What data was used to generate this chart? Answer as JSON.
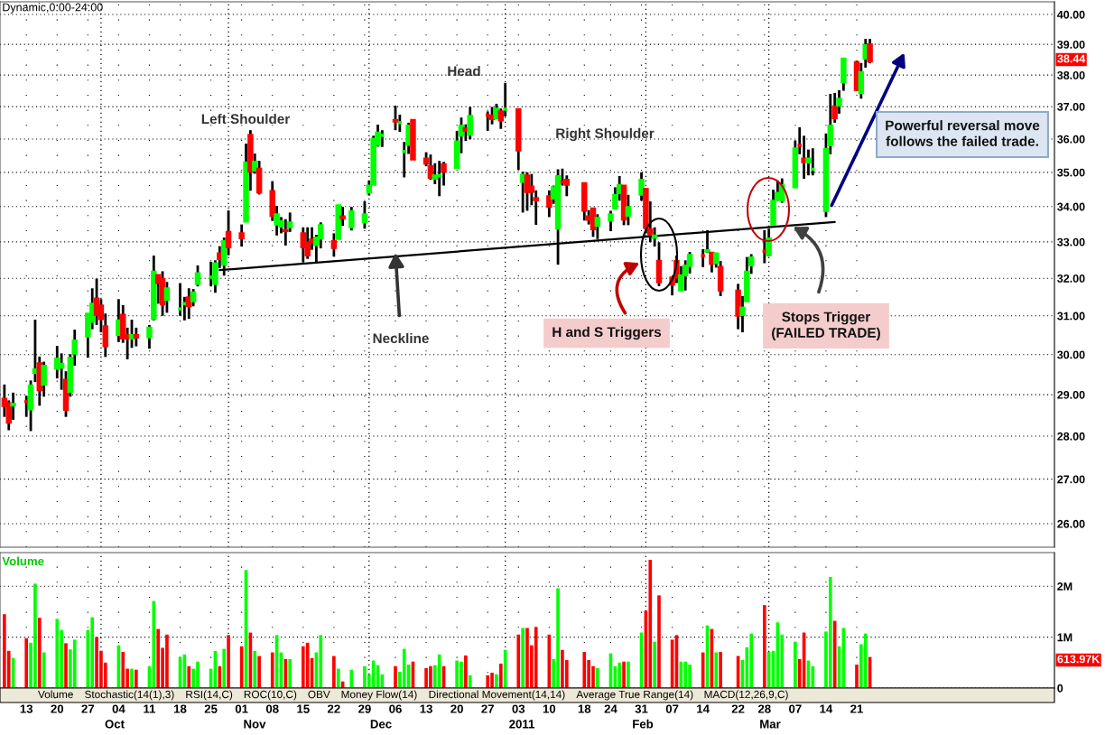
{
  "chart_data": [
    {
      "type": "candlestick",
      "title": "Dynamic,0:00-24:00",
      "x": [
        "2010-09-08",
        "2010-09-09",
        "2010-09-10",
        "2010-09-13",
        "2010-09-14",
        "2010-09-15",
        "2010-09-16",
        "2010-09-17",
        "2010-09-20",
        "2010-09-21",
        "2010-09-22",
        "2010-09-23",
        "2010-09-24",
        "2010-09-27",
        "2010-09-28",
        "2010-09-29",
        "2010-09-30",
        "2010-10-01",
        "2010-10-04",
        "2010-10-05",
        "2010-10-06",
        "2010-10-07",
        "2010-10-08",
        "2010-10-11",
        "2010-10-12",
        "2010-10-13",
        "2010-10-14",
        "2010-10-15",
        "2010-10-18",
        "2010-10-19",
        "2010-10-20",
        "2010-10-21",
        "2010-10-22",
        "2010-10-25",
        "2010-10-26",
        "2010-10-27",
        "2010-10-28",
        "2010-10-29",
        "2010-11-01",
        "2010-11-02",
        "2010-11-03",
        "2010-11-04",
        "2010-11-05",
        "2010-11-08",
        "2010-11-09",
        "2010-11-10",
        "2010-11-11",
        "2010-11-12",
        "2010-11-15",
        "2010-11-16",
        "2010-11-17",
        "2010-11-18",
        "2010-11-19",
        "2010-11-22",
        "2010-11-23",
        "2010-11-24",
        "2010-11-26",
        "2010-11-29",
        "2010-11-30",
        "2010-12-01",
        "2010-12-02",
        "2010-12-03",
        "2010-12-06",
        "2010-12-07",
        "2010-12-08",
        "2010-12-09",
        "2010-12-10",
        "2010-12-13",
        "2010-12-14",
        "2010-12-15",
        "2010-12-16",
        "2010-12-17",
        "2010-12-20",
        "2010-12-21",
        "2010-12-22",
        "2010-12-23",
        "2010-12-27",
        "2010-12-28",
        "2010-12-29",
        "2010-12-30",
        "2010-12-31",
        "2011-01-03",
        "2011-01-04",
        "2011-01-05",
        "2011-01-06",
        "2011-01-07",
        "2011-01-10",
        "2011-01-11",
        "2011-01-12",
        "2011-01-13",
        "2011-01-14",
        "2011-01-18",
        "2011-01-19",
        "2011-01-20",
        "2011-01-21",
        "2011-01-24",
        "2011-01-25",
        "2011-01-26",
        "2011-01-27",
        "2011-01-28",
        "2011-01-31",
        "2011-02-01",
        "2011-02-02",
        "2011-02-03",
        "2011-02-04",
        "2011-02-07",
        "2011-02-08",
        "2011-02-09",
        "2011-02-10",
        "2011-02-11",
        "2011-02-14",
        "2011-02-15",
        "2011-02-16",
        "2011-02-17",
        "2011-02-18",
        "2011-02-22",
        "2011-02-23",
        "2011-02-24",
        "2011-02-25",
        "2011-02-28",
        "2011-03-01",
        "2011-03-02",
        "2011-03-03",
        "2011-03-04",
        "2011-03-07",
        "2011-03-08",
        "2011-03-09",
        "2011-03-10",
        "2011-03-11",
        "2011-03-14",
        "2011-03-15",
        "2011-03-16",
        "2011-03-17",
        "2011-03-18",
        "2011-03-21",
        "2011-03-22",
        "2011-03-23",
        "2011-03-24"
      ],
      "ohlc": [
        [
          28.9,
          29.25,
          28.46,
          28.72
        ],
        [
          28.79,
          28.86,
          28.14,
          28.32
        ],
        [
          28.73,
          29.05,
          28.39,
          28.78
        ],
        [
          28.83,
          28.97,
          28.46,
          28.83
        ],
        [
          28.64,
          29.35,
          28.12,
          29.23
        ],
        [
          29.54,
          30.9,
          29.31,
          29.63
        ],
        [
          29.78,
          29.95,
          28.73,
          29.11
        ],
        [
          29.25,
          29.82,
          28.95,
          29.72
        ],
        [
          29.64,
          30.22,
          29.4,
          29.9
        ],
        [
          29.67,
          30.03,
          29.12,
          29.77
        ],
        [
          29.37,
          29.58,
          28.46,
          28.63
        ],
        [
          29.07,
          30.01,
          28.95,
          29.92
        ],
        [
          30.02,
          30.64,
          29.72,
          30.36
        ],
        [
          30.46,
          31.06,
          29.92,
          31.06
        ],
        [
          30.84,
          31.73,
          30.65,
          31.32
        ],
        [
          31.46,
          31.99,
          30.76,
          31.02
        ],
        [
          31.27,
          31.44,
          30.57,
          30.91
        ],
        [
          30.73,
          31.06,
          29.94,
          30.21
        ],
        [
          30.5,
          31.44,
          30.32,
          30.88
        ],
        [
          31.03,
          31.28,
          30.3,
          30.41
        ],
        [
          30.5,
          30.69,
          29.88,
          30.41
        ],
        [
          30.41,
          30.9,
          30.17,
          30.5
        ],
        [
          30.5,
          30.69,
          30.21,
          30.44
        ],
        [
          30.44,
          30.76,
          30.15,
          30.69
        ],
        [
          30.92,
          32.62,
          30.88,
          32.18
        ],
        [
          32.09,
          32.09,
          31.32,
          31.87
        ],
        [
          31.98,
          32.19,
          31.0,
          31.3
        ],
        [
          31.42,
          31.9,
          31.08,
          31.73
        ],
        [
          31.18,
          31.87,
          31.0,
          31.18
        ],
        [
          31.32,
          31.5,
          30.88,
          31.32
        ],
        [
          31.49,
          31.73,
          30.92,
          31.25
        ],
        [
          31.38,
          31.71,
          31.25,
          31.62
        ],
        [
          31.85,
          32.35,
          31.78,
          32.14
        ],
        [
          32.03,
          32.45,
          31.78,
          32.03
        ],
        [
          31.85,
          32.49,
          31.61,
          32.41
        ],
        [
          32.68,
          32.88,
          32.28,
          32.52
        ],
        [
          32.37,
          33.12,
          32.07,
          33.02
        ],
        [
          33.28,
          33.89,
          32.63,
          32.85
        ],
        [
          33.24,
          33.49,
          32.87,
          33.1
        ],
        [
          33.57,
          35.86,
          33.57,
          35.29
        ],
        [
          36.13,
          36.27,
          34.46,
          35.02
        ],
        [
          35.05,
          35.56,
          34.96,
          35.32
        ],
        [
          35.11,
          35.34,
          34.35,
          34.41
        ],
        [
          34.45,
          34.74,
          33.59,
          33.73
        ],
        [
          33.49,
          34.02,
          33.18,
          33.78
        ],
        [
          33.43,
          33.7,
          33.24,
          33.59
        ],
        [
          33.34,
          33.64,
          32.9,
          33.3
        ],
        [
          33.41,
          33.83,
          33.28,
          33.55
        ],
        [
          33.24,
          33.41,
          32.43,
          32.85
        ],
        [
          32.99,
          33.41,
          32.53,
          32.62
        ],
        [
          33.07,
          33.41,
          32.78,
          32.99
        ],
        [
          32.91,
          33.2,
          32.43,
          33.12
        ],
        [
          33.1,
          33.55,
          32.82,
          33.47
        ],
        [
          33.02,
          33.24,
          32.59,
          32.83
        ],
        [
          33.08,
          34.04,
          33.07,
          34.04
        ],
        [
          33.72,
          33.99,
          33.45,
          33.66
        ],
        [
          33.41,
          33.99,
          33.32,
          33.87
        ],
        [
          33.55,
          34.15,
          33.37,
          33.78
        ],
        [
          34.41,
          34.76,
          34.32,
          34.61
        ],
        [
          34.63,
          36.1,
          34.63,
          36.01
        ],
        [
          35.82,
          36.44,
          35.77,
          36.2
        ],
        [
          36.11,
          36.27,
          35.76,
          36.11
        ],
        [
          36.59,
          37.03,
          36.27,
          36.53
        ],
        [
          36.5,
          36.75,
          36.22,
          36.5
        ],
        [
          35.62,
          35.91,
          34.85,
          35.62
        ],
        [
          35.82,
          36.5,
          35.55,
          36.41
        ],
        [
          36.59,
          36.59,
          35.38,
          35.38
        ],
        [
          35.41,
          35.6,
          35.18,
          35.26
        ],
        [
          35.18,
          35.53,
          34.78,
          34.84
        ],
        [
          34.81,
          35.27,
          34.65,
          34.91
        ],
        [
          34.9,
          35.34,
          34.3,
          34.9
        ],
        [
          35.24,
          35.31,
          34.61,
          35.02
        ],
        [
          35.13,
          36.25,
          35.13,
          35.93
        ],
        [
          36.1,
          36.66,
          35.57,
          36.41
        ],
        [
          36.33,
          36.45,
          35.94,
          36.25
        ],
        [
          36.13,
          36.99,
          35.99,
          36.71
        ],
        [
          36.73,
          36.85,
          36.25,
          36.73
        ],
        [
          36.73,
          36.99,
          36.45,
          36.61
        ],
        [
          36.64,
          37.09,
          36.62,
          36.94
        ],
        [
          36.85,
          36.94,
          36.31,
          36.57
        ],
        [
          36.92,
          37.75,
          36.69,
          36.92
        ],
        [
          36.92,
          36.92,
          35.07,
          35.65
        ],
        [
          34.72,
          35.02,
          33.83,
          34.93
        ],
        [
          34.91,
          35.0,
          33.88,
          34.42
        ],
        [
          34.58,
          34.95,
          34.04,
          34.43
        ],
        [
          34.25,
          34.47,
          33.48,
          34.18
        ],
        [
          34.3,
          34.47,
          33.7,
          33.99
        ],
        [
          34.23,
          34.61,
          34.08,
          34.56
        ],
        [
          33.37,
          35.09,
          32.37,
          34.89
        ],
        [
          34.72,
          35.11,
          34.61,
          34.72
        ],
        [
          34.78,
          34.91,
          34.3,
          34.63
        ],
        [
          34.68,
          34.7,
          33.6,
          33.88
        ],
        [
          33.72,
          33.9,
          33.49,
          33.62
        ],
        [
          33.95,
          33.95,
          33.14,
          33.35
        ],
        [
          33.45,
          33.78,
          33.08,
          33.68
        ],
        [
          33.6,
          33.88,
          33.3,
          33.78
        ],
        [
          33.95,
          34.56,
          33.93,
          34.34
        ],
        [
          34.39,
          34.89,
          34.17,
          34.63
        ],
        [
          34.61,
          34.61,
          33.47,
          33.63
        ],
        [
          33.74,
          34.34,
          33.47,
          33.99
        ],
        [
          34.34,
          35.0,
          34.17,
          34.78
        ],
        [
          34.52,
          34.52,
          33.24,
          33.39
        ],
        [
          33.35,
          34.15,
          32.99,
          33.2
        ],
        [
          33.12,
          33.41,
          32.87,
          33.18
        ],
        [
          32.48,
          32.99,
          31.79,
          31.89
        ],
        [
          32.02,
          32.02,
          31.54,
          31.83
        ],
        [
          32.47,
          32.62,
          31.87,
          32.02
        ],
        [
          31.67,
          32.33,
          31.67,
          32.08
        ],
        [
          32.08,
          32.49,
          31.67,
          32.35
        ],
        [
          32.33,
          32.72,
          32.13,
          32.64
        ],
        [
          32.62,
          32.8,
          32.3,
          32.62
        ],
        [
          32.73,
          33.33,
          32.7,
          32.77
        ],
        [
          32.7,
          32.7,
          32.16,
          32.39
        ],
        [
          32.41,
          32.68,
          32.29,
          32.68
        ],
        [
          32.31,
          32.47,
          31.52,
          31.67
        ],
        [
          31.67,
          31.85,
          30.65,
          31.0
        ],
        [
          31.02,
          31.52,
          30.57,
          31.22
        ],
        [
          31.38,
          32.58,
          31.38,
          32.18
        ],
        [
          32.35,
          32.66,
          32.12,
          32.57
        ],
        [
          32.74,
          33.33,
          32.41,
          32.74
        ],
        [
          32.63,
          33.37,
          32.6,
          33.1
        ],
        [
          33.49,
          34.49,
          33.48,
          34.17
        ],
        [
          34.19,
          34.74,
          34.17,
          34.4
        ],
        [
          34.17,
          34.82,
          34.11,
          34.63
        ],
        [
          34.56,
          35.95,
          34.54,
          35.72
        ],
        [
          35.81,
          36.36,
          35.54,
          35.81
        ],
        [
          35.41,
          36.1,
          34.81,
          35.29
        ],
        [
          35.29,
          35.68,
          34.91,
          35.41
        ],
        [
          35.09,
          35.72,
          34.91,
          35.09
        ],
        [
          33.87,
          36.17,
          33.7,
          35.7
        ],
        [
          35.81,
          37.4,
          35.54,
          36.41
        ],
        [
          37.01,
          37.43,
          36.5,
          36.64
        ],
        [
          37.03,
          37.52,
          36.78,
          37.25
        ],
        [
          37.77,
          38.54,
          37.5,
          38.54
        ],
        [
          38.42,
          38.47,
          37.5,
          37.52
        ],
        [
          37.42,
          38.39,
          37.25,
          38.1
        ],
        [
          38.53,
          39.18,
          38.24,
          38.97
        ],
        [
          39.0,
          39.18,
          38.38,
          38.44
        ]
      ],
      "colors": [
        "#ff0000",
        "#ff0000",
        "#00ff00",
        "#ff0000",
        "#00ff00",
        "#00ff00",
        "#ff0000",
        "#00ff00",
        "#00ff00",
        "#00ff00",
        "#ff0000",
        "#00ff00",
        "#00ff00",
        "#00ff00",
        "#00ff00",
        "#ff0000",
        "#ff0000",
        "#ff0000",
        "#00ff00",
        "#ff0000",
        "#ff0000",
        "#00ff00",
        "#ff0000",
        "#00ff00",
        "#00ff00",
        "#ff0000",
        "#ff0000",
        "#00ff00",
        "#00ff00",
        "#00ff00",
        "#ff0000",
        "#00ff00",
        "#00ff00",
        "#00ff00",
        "#00ff00",
        "#ff0000",
        "#00ff00",
        "#ff0000",
        "#ff0000",
        "#00ff00",
        "#ff0000",
        "#00ff00",
        "#ff0000",
        "#ff0000",
        "#00ff00",
        "#00ff00",
        "#ff0000",
        "#00ff00",
        "#ff0000",
        "#ff0000",
        "#ff0000",
        "#00ff00",
        "#00ff00",
        "#ff0000",
        "#00ff00",
        "#ff0000",
        "#00ff00",
        "#00ff00",
        "#00ff00",
        "#00ff00",
        "#00ff00",
        "#00ff00",
        "#ff0000",
        "#00ff00",
        "#00ff00",
        "#00ff00",
        "#ff0000",
        "#ff0000",
        "#ff0000",
        "#00ff00",
        "#00ff00",
        "#ff0000",
        "#00ff00",
        "#00ff00",
        "#ff0000",
        "#00ff00",
        "#ff0000",
        "#ff0000",
        "#00ff00",
        "#ff0000",
        "#00ff00",
        "#ff0000",
        "#00ff00",
        "#ff0000",
        "#ff0000",
        "#ff0000",
        "#ff0000",
        "#00ff00",
        "#00ff00",
        "#ff0000",
        "#ff0000",
        "#ff0000",
        "#ff0000",
        "#ff0000",
        "#00ff00",
        "#00ff00",
        "#00ff00",
        "#00ff00",
        "#ff0000",
        "#00ff00",
        "#00ff00",
        "#ff0000",
        "#ff0000",
        "#00ff00",
        "#ff0000",
        "#ff0000",
        "#ff0000",
        "#00ff00",
        "#00ff00",
        "#00ff00",
        "#ff0000",
        "#00ff00",
        "#ff0000",
        "#00ff00",
        "#ff0000",
        "#ff0000",
        "#00ff00",
        "#00ff00",
        "#00ff00",
        "#ff0000",
        "#00ff00",
        "#00ff00",
        "#00ff00",
        "#00ff00",
        "#00ff00",
        "#ff0000",
        "#ff0000",
        "#00ff00",
        "#00ff00",
        "#00ff00",
        "#00ff00",
        "#ff0000",
        "#00ff00",
        "#00ff00",
        "#ff0000",
        "#00ff00",
        "#00ff00",
        "#ff0000"
      ],
      "series": [
        {
          "type": "line",
          "x": [
            "2010-10-27",
            "2011-03-16"
          ],
          "values": [
            32.22,
            33.56
          ],
          "color": "#000000"
        }
      ],
      "xlim": [
        "2010-09-07",
        "2011-05-05"
      ],
      "xticks": [
        {
          "value": "2010-09-13",
          "label": null
        },
        {
          "value": "2010-09-20",
          "label": null
        },
        {
          "value": "2010-09-27",
          "label": null
        },
        {
          "value": "2010-10-04",
          "label": null
        },
        {
          "value": "2010-10-11",
          "label": null
        },
        {
          "value": "2010-10-18",
          "label": null
        },
        {
          "value": "2010-10-25",
          "label": null
        },
        {
          "value": "2010-11-01",
          "label": null
        },
        {
          "value": "2010-11-08",
          "label": null
        },
        {
          "value": "2010-11-15",
          "label": null
        },
        {
          "value": "2010-11-22",
          "label": null
        },
        {
          "value": "2010-11-29",
          "label": null
        },
        {
          "value": "2010-12-06",
          "label": null
        },
        {
          "value": "2010-12-13",
          "label": null
        },
        {
          "value": "2010-12-20",
          "label": null
        },
        {
          "value": "2010-12-27",
          "label": null
        },
        {
          "value": "2011-01-03",
          "label": null
        },
        {
          "value": "2011-01-10",
          "label": null
        },
        {
          "value": "2011-01-18",
          "label": null
        },
        {
          "value": "2011-01-24",
          "label": null
        },
        {
          "value": "2011-01-31",
          "label": null
        },
        {
          "value": "2011-02-07",
          "label": null
        },
        {
          "value": "2011-02-14",
          "label": null
        },
        {
          "value": "2011-02-22",
          "label": null
        },
        {
          "value": "2011-02-28",
          "label": null
        },
        {
          "value": "2011-03-07",
          "label": null
        },
        {
          "value": "2011-03-14",
          "label": null
        },
        {
          "value": "2011-03-21",
          "label": null
        }
      ],
      "ylim": [
        25.49,
        40.43
      ],
      "yticks": [
        {
          "value": 26,
          "label": "26.00"
        },
        {
          "value": 27,
          "label": "27.00"
        },
        {
          "value": 28,
          "label": "28.00"
        },
        {
          "value": 29,
          "label": "29.00"
        },
        {
          "value": 30,
          "label": "30.00"
        },
        {
          "value": 31,
          "label": "31.00"
        },
        {
          "value": 32,
          "label": "32.00"
        },
        {
          "value": 33,
          "label": "33.00"
        },
        {
          "value": 34,
          "label": "34.00"
        },
        {
          "value": 35,
          "label": "35.00"
        },
        {
          "value": 36,
          "label": "36.00"
        },
        {
          "value": 37,
          "label": "37.00"
        },
        {
          "value": 38,
          "label": "38.00"
        },
        {
          "value": 39,
          "label": "39.00"
        },
        {
          "value": 40,
          "label": "40.00"
        }
      ],
      "log": true,
      "grid": true,
      "tick_labels": "y",
      "ref_lines": [
        {
          "axis": "x",
          "value": "2010-09-30",
          "color": "#000000",
          "line_style": "dotted"
        },
        {
          "axis": "x",
          "value": "2010-10-29",
          "color": "#000000",
          "line_style": "dotted"
        },
        {
          "axis": "x",
          "value": "2010-11-30",
          "color": "#000000",
          "line_style": "dotted"
        },
        {
          "axis": "x",
          "value": "2010-12-31",
          "color": "#000000",
          "line_style": "dotted"
        },
        {
          "axis": "x",
          "value": "2011-02-01",
          "color": "#000000",
          "line_style": "dotted"
        },
        {
          "axis": "x",
          "value": "2011-03-01",
          "color": "#000000",
          "line_style": "dotted"
        }
      ],
      "annotations": [
        "Left Shoulder",
        "Head",
        "Right Shoulder",
        {
          "text": "Neckline",
          "x": "2010-12-06",
          "y": 32.7
        },
        "H and S Triggers",
        "Stops Trigger\n(FAILED TRADE)",
        "Powerful reversal move\nfollows the failed trade.",
        "38.44"
      ]
    },
    {
      "type": "bar",
      "title": "Volume",
      "x": [
        "2010-09-08",
        "2010-09-09",
        "2010-09-10",
        "2010-09-13",
        "2010-09-14",
        "2010-09-15",
        "2010-09-16",
        "2010-09-17",
        "2010-09-20",
        "2010-09-21",
        "2010-09-22",
        "2010-09-23",
        "2010-09-24",
        "2010-09-27",
        "2010-09-28",
        "2010-09-29",
        "2010-09-30",
        "2010-10-01",
        "2010-10-04",
        "2010-10-05",
        "2010-10-06",
        "2010-10-07",
        "2010-10-08",
        "2010-10-11",
        "2010-10-12",
        "2010-10-13",
        "2010-10-14",
        "2010-10-15",
        "2010-10-18",
        "2010-10-19",
        "2010-10-20",
        "2010-10-21",
        "2010-10-22",
        "2010-10-25",
        "2010-10-26",
        "2010-10-27",
        "2010-10-28",
        "2010-10-29",
        "2010-11-01",
        "2010-11-02",
        "2010-11-03",
        "2010-11-04",
        "2010-11-05",
        "2010-11-08",
        "2010-11-09",
        "2010-11-10",
        "2010-11-11",
        "2010-11-12",
        "2010-11-15",
        "2010-11-16",
        "2010-11-17",
        "2010-11-18",
        "2010-11-19",
        "2010-11-22",
        "2010-11-23",
        "2010-11-24",
        "2010-11-26",
        "2010-11-29",
        "2010-11-30",
        "2010-12-01",
        "2010-12-02",
        "2010-12-03",
        "2010-12-06",
        "2010-12-07",
        "2010-12-08",
        "2010-12-09",
        "2010-12-10",
        "2010-12-13",
        "2010-12-14",
        "2010-12-15",
        "2010-12-16",
        "2010-12-17",
        "2010-12-20",
        "2010-12-21",
        "2010-12-22",
        "2010-12-23",
        "2010-12-27",
        "2010-12-28",
        "2010-12-29",
        "2010-12-30",
        "2010-12-31",
        "2011-01-03",
        "2011-01-04",
        "2011-01-05",
        "2011-01-06",
        "2011-01-07",
        "2011-01-10",
        "2011-01-11",
        "2011-01-12",
        "2011-01-13",
        "2011-01-14",
        "2011-01-18",
        "2011-01-19",
        "2011-01-20",
        "2011-01-21",
        "2011-01-24",
        "2011-01-25",
        "2011-01-26",
        "2011-01-27",
        "2011-01-28",
        "2011-01-31",
        "2011-02-01",
        "2011-02-02",
        "2011-02-03",
        "2011-02-04",
        "2011-02-07",
        "2011-02-08",
        "2011-02-09",
        "2011-02-10",
        "2011-02-11",
        "2011-02-14",
        "2011-02-15",
        "2011-02-16",
        "2011-02-17",
        "2011-02-18",
        "2011-02-22",
        "2011-02-23",
        "2011-02-24",
        "2011-02-25",
        "2011-02-28",
        "2011-03-01",
        "2011-03-02",
        "2011-03-03",
        "2011-03-04",
        "2011-03-07",
        "2011-03-08",
        "2011-03-09",
        "2011-03-10",
        "2011-03-11",
        "2011-03-14",
        "2011-03-15",
        "2011-03-16",
        "2011-03-17",
        "2011-03-18",
        "2011-03-21",
        "2011-03-22",
        "2011-03-23",
        "2011-03-24"
      ],
      "values": [
        1.45,
        0.73,
        0.59,
        0.98,
        0.89,
        2.05,
        1.38,
        0.7,
        1.36,
        1.14,
        0.88,
        0.76,
        0.95,
        1.14,
        1.39,
        1.0,
        0.73,
        0.5,
        0.84,
        0.71,
        0.38,
        0.38,
        0.36,
        0.43,
        1.71,
        1.16,
        0.79,
        1.05,
        0.61,
        0.66,
        0.43,
        0.38,
        0.52,
        0.38,
        0.73,
        0.43,
        0.77,
        1.04,
        0.82,
        2.32,
        1.09,
        0.73,
        0.63,
        0.7,
        1.04,
        0.7,
        0.57,
        0.57,
        0.82,
        0.89,
        0.59,
        0.7,
        1.04,
        0.63,
        0.38,
        0.13,
        0.36,
        0.43,
        0.27,
        0.54,
        0.45,
        0.27,
        0.43,
        0.32,
        0.77,
        0.46,
        0.52,
        0.39,
        0.43,
        0.45,
        0.66,
        0.43,
        0.54,
        0.52,
        0.64,
        0.25,
        0.25,
        0.3,
        0.27,
        0.48,
        0.75,
        1.05,
        1.18,
        1.18,
        0.84,
        1.2,
        1.05,
        0.57,
        1.96,
        0.75,
        0.55,
        0.71,
        0.55,
        0.43,
        0.39,
        0.68,
        0.43,
        0.5,
        0.52,
        0.52,
        1.09,
        1.52,
        2.52,
        0.91,
        1.82,
        0.95,
        1.04,
        0.52,
        0.52,
        0.46,
        0.7,
        1.23,
        1.16,
        0.7,
        0.71,
        0.63,
        0.55,
        0.8,
        1.07,
        1.63,
        0.71,
        0.73,
        1.29,
        1.05,
        0.91,
        0.57,
        1.09,
        0.54,
        0.43,
        1.11,
        2.18,
        1.32,
        0.82,
        1.18,
        0.46,
        0.86,
        1.07,
        0.61
      ],
      "colors": [
        "#ff0000",
        "#ff0000",
        "#00ff00",
        "#ff0000",
        "#00ff00",
        "#00ff00",
        "#ff0000",
        "#00ff00",
        "#00ff00",
        "#00ff00",
        "#ff0000",
        "#00ff00",
        "#00ff00",
        "#00ff00",
        "#00ff00",
        "#ff0000",
        "#ff0000",
        "#ff0000",
        "#00ff00",
        "#ff0000",
        "#ff0000",
        "#00ff00",
        "#ff0000",
        "#00ff00",
        "#00ff00",
        "#ff0000",
        "#ff0000",
        "#ff0000",
        "#00ff00",
        "#00ff00",
        "#ff0000",
        "#00ff00",
        "#00ff00",
        "#00ff00",
        "#00ff00",
        "#ff0000",
        "#00ff00",
        "#ff0000",
        "#ff0000",
        "#00ff00",
        "#ff0000",
        "#00ff00",
        "#ff0000",
        "#ff0000",
        "#00ff00",
        "#00ff00",
        "#ff0000",
        "#00ff00",
        "#ff0000",
        "#ff0000",
        "#ff0000",
        "#00ff00",
        "#00ff00",
        "#ff0000",
        "#00ff00",
        "#ff0000",
        "#00ff00",
        "#00ff00",
        "#00ff00",
        "#00ff00",
        "#00ff00",
        "#00ff00",
        "#ff0000",
        "#00ff00",
        "#00ff00",
        "#00ff00",
        "#ff0000",
        "#ff0000",
        "#ff0000",
        "#00ff00",
        "#00ff00",
        "#ff0000",
        "#00ff00",
        "#00ff00",
        "#ff0000",
        "#00ff00",
        "#ff0000",
        "#ff0000",
        "#00ff00",
        "#ff0000",
        "#00ff00",
        "#ff0000",
        "#00ff00",
        "#ff0000",
        "#ff0000",
        "#ff0000",
        "#ff0000",
        "#00ff00",
        "#00ff00",
        "#ff0000",
        "#ff0000",
        "#ff0000",
        "#ff0000",
        "#ff0000",
        "#00ff00",
        "#00ff00",
        "#00ff00",
        "#00ff00",
        "#ff0000",
        "#00ff00",
        "#00ff00",
        "#ff0000",
        "#ff0000",
        "#00ff00",
        "#ff0000",
        "#ff0000",
        "#ff0000",
        "#00ff00",
        "#00ff00",
        "#00ff00",
        "#ff0000",
        "#00ff00",
        "#ff0000",
        "#00ff00",
        "#ff0000",
        "#ff0000",
        "#00ff00",
        "#00ff00",
        "#00ff00",
        "#ff0000",
        "#00ff00",
        "#00ff00",
        "#00ff00",
        "#00ff00",
        "#00ff00",
        "#ff0000",
        "#ff0000",
        "#00ff00",
        "#00ff00",
        "#00ff00",
        "#00ff00",
        "#ff0000",
        "#00ff00",
        "#00ff00",
        "#ff0000",
        "#00ff00",
        "#00ff00",
        "#ff0000"
      ],
      "xlim": [
        "2010-09-07",
        "2011-05-05"
      ],
      "xticks": [
        {
          "value": "2010-09-13",
          "label": "13"
        },
        {
          "value": "2010-09-20",
          "label": "20"
        },
        {
          "value": "2010-09-27",
          "label": "27"
        },
        {
          "value": "2010-10-04",
          "label": "04"
        },
        {
          "value": "2010-10-11",
          "label": "11"
        },
        {
          "value": "2010-10-18",
          "label": "18"
        },
        {
          "value": "2010-10-25",
          "label": "25"
        },
        {
          "value": "2010-11-01",
          "label": "01"
        },
        {
          "value": "2010-11-08",
          "label": "08"
        },
        {
          "value": "2010-11-15",
          "label": "15"
        },
        {
          "value": "2010-11-22",
          "label": "22"
        },
        {
          "value": "2010-11-29",
          "label": "29"
        },
        {
          "value": "2010-12-06",
          "label": "06"
        },
        {
          "value": "2010-12-13",
          "label": "13"
        },
        {
          "value": "2010-12-20",
          "label": "20"
        },
        {
          "value": "2010-12-27",
          "label": "27"
        },
        {
          "value": "2011-01-03",
          "label": "03"
        },
        {
          "value": "2011-01-10",
          "label": "10"
        },
        {
          "value": "2011-01-18",
          "label": "18"
        },
        {
          "value": "2011-01-24",
          "label": "24"
        },
        {
          "value": "2011-01-31",
          "label": "31"
        },
        {
          "value": "2011-02-07",
          "label": "07"
        },
        {
          "value": "2011-02-14",
          "label": "14"
        },
        {
          "value": "2011-02-22",
          "label": "22"
        },
        {
          "value": "2011-02-28",
          "label": "28"
        },
        {
          "value": "2011-03-07",
          "label": "07"
        },
        {
          "value": "2011-03-14",
          "label": "14"
        },
        {
          "value": "2011-03-21",
          "label": "21"
        }
      ],
      "ylim": [
        0,
        2.66
      ],
      "yticks": [
        {
          "value": 0,
          "label": "0"
        },
        {
          "value": 1,
          "label": "1M"
        },
        {
          "value": 2,
          "label": "2M"
        }
      ],
      "grid": true,
      "ref_lines": [
        {
          "axis": "x",
          "value": "2010-09-30",
          "color": "#000000",
          "line_style": "dotted"
        },
        {
          "axis": "x",
          "value": "2010-10-29",
          "color": "#000000",
          "line_style": "dotted"
        },
        {
          "axis": "x",
          "value": "2010-11-30",
          "color": "#000000",
          "line_style": "dotted"
        },
        {
          "axis": "x",
          "value": "2010-12-31",
          "color": "#000000",
          "line_style": "dotted"
        },
        {
          "axis": "x",
          "value": "2011-02-01",
          "color": "#000000",
          "line_style": "dotted"
        },
        {
          "axis": "x",
          "value": "2011-03-01",
          "color": "#000000",
          "line_style": "dotted"
        }
      ],
      "annotations": [
        "613.97K",
        "Volume",
        "Stochastic(14(1),3)",
        "RSI(14,C)",
        "ROC(10,C)",
        "OBV",
        "Money Flow(14)",
        "Directional Movement(14,14)",
        "Average True Range(14)",
        "MACD(12,26,9,C)",
        "Oct",
        "Nov",
        "Dec",
        "2011",
        "Feb",
        "Mar"
      ]
    }
  ]
}
